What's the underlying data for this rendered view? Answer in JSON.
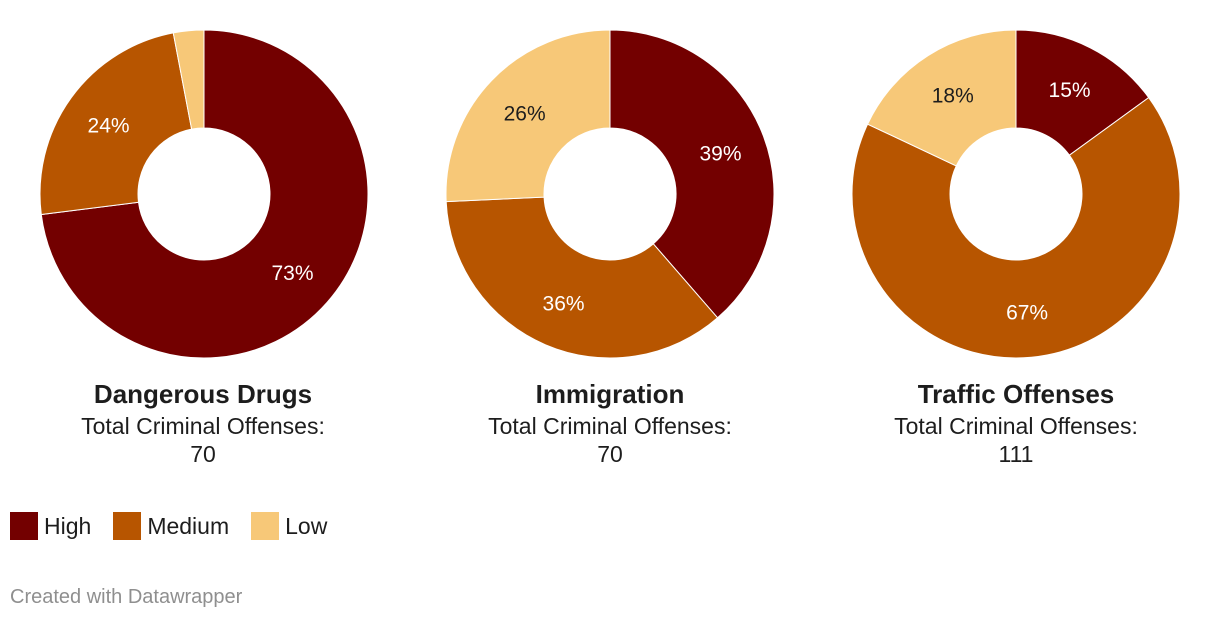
{
  "chart_data": [
    {
      "type": "pie",
      "title": "Dangerous Drugs",
      "subtitle": "Total Criminal Offenses:",
      "total": "70",
      "categories": [
        "High",
        "Medium",
        "Low"
      ],
      "values": [
        73,
        24,
        3
      ],
      "labels": [
        "73%",
        "24%",
        ""
      ]
    },
    {
      "type": "pie",
      "title": "Immigration",
      "subtitle": "Total Criminal Offenses:",
      "total": "70",
      "categories": [
        "High",
        "Medium",
        "Low"
      ],
      "values": [
        39,
        36,
        26
      ],
      "labels": [
        "39%",
        "36%",
        "26%"
      ]
    },
    {
      "type": "pie",
      "title": "Traffic Offenses",
      "subtitle": "Total Criminal Offenses:",
      "total": "111",
      "categories": [
        "High",
        "Medium",
        "Low"
      ],
      "values": [
        15,
        67,
        18
      ],
      "labels": [
        "15%",
        "67%",
        "18%"
      ]
    }
  ],
  "legend": [
    {
      "label": "High",
      "color": "#730000"
    },
    {
      "label": "Medium",
      "color": "#b75500"
    },
    {
      "label": "Low",
      "color": "#f7c878"
    }
  ],
  "label_colors": [
    "#ffffff",
    "#ffffff",
    "#1d1d1d"
  ],
  "footer": "Created with Datawrapper"
}
